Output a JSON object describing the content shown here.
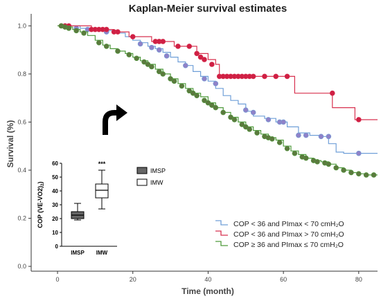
{
  "chart_data": [
    {
      "type": "line",
      "subtype": "step",
      "title": "Kaplan-Meier survival estimates",
      "xlabel": "Time (month)",
      "ylabel": "Survival (%)",
      "xlim": [
        -7,
        85
      ],
      "ylim": [
        -0.02,
        1.05
      ],
      "x_ticks": [
        0,
        20,
        40,
        60,
        80
      ],
      "y_ticks": [
        0.0,
        0.2,
        0.4,
        0.6,
        0.8,
        1.0
      ],
      "y_tick_labels": [
        "0.0",
        "0.2",
        "0.4",
        "0.6",
        "0.8",
        "1.0"
      ],
      "grid": false,
      "legend_position": "bottom-right",
      "series": [
        {
          "name": "COP < 36 and PImax < 70 cmH₂O",
          "color": "#6f9fd8",
          "marker_color": "#8f82c8",
          "points": [
            [
              0,
              1.0
            ],
            [
              3,
              1.0
            ],
            [
              6,
              0.99
            ],
            [
              9,
              0.985
            ],
            [
              12,
              0.98
            ],
            [
              15,
              0.97
            ],
            [
              18,
              0.955
            ],
            [
              20,
              0.94
            ],
            [
              22,
              0.93
            ],
            [
              24,
              0.915
            ],
            [
              26,
              0.905
            ],
            [
              28,
              0.89
            ],
            [
              30,
              0.87
            ],
            [
              32,
              0.85
            ],
            [
              34,
              0.835
            ],
            [
              36,
              0.81
            ],
            [
              38,
              0.79
            ],
            [
              40,
              0.77
            ],
            [
              42,
              0.74
            ],
            [
              44,
              0.71
            ],
            [
              46,
              0.69
            ],
            [
              48,
              0.675
            ],
            [
              50,
              0.645
            ],
            [
              52,
              0.625
            ],
            [
              55,
              0.615
            ],
            [
              58,
              0.6
            ],
            [
              61,
              0.58
            ],
            [
              64,
              0.555
            ],
            [
              67,
              0.545
            ],
            [
              70,
              0.54
            ],
            [
              72,
              0.51
            ],
            [
              74,
              0.475
            ],
            [
              76,
              0.47
            ],
            [
              80,
              0.47
            ],
            [
              85,
              0.47
            ]
          ],
          "markers": [
            [
              2,
              1.0
            ],
            [
              5,
              0.99
            ],
            [
              8,
              0.985
            ],
            [
              13,
              0.975
            ],
            [
              22,
              0.925
            ],
            [
              25,
              0.91
            ],
            [
              27,
              0.9
            ],
            [
              29,
              0.875
            ],
            [
              34,
              0.835
            ],
            [
              39,
              0.78
            ],
            [
              42,
              0.76
            ],
            [
              50,
              0.65
            ],
            [
              52,
              0.64
            ],
            [
              56,
              0.61
            ],
            [
              59,
              0.6
            ],
            [
              60,
              0.6
            ],
            [
              64,
              0.545
            ],
            [
              66,
              0.545
            ],
            [
              70,
              0.54
            ],
            [
              72,
              0.54
            ],
            [
              80,
              0.47
            ]
          ]
        },
        {
          "name": "COP < 36 and PImax > 70 cmH₂O",
          "color": "#d8314f",
          "marker_color": "#cf1f44",
          "points": [
            [
              0,
              1.0
            ],
            [
              8,
              1.0
            ],
            [
              9,
              0.985
            ],
            [
              14,
              0.985
            ],
            [
              15,
              0.975
            ],
            [
              18,
              0.975
            ],
            [
              19,
              0.955
            ],
            [
              24,
              0.955
            ],
            [
              25,
              0.935
            ],
            [
              30,
              0.935
            ],
            [
              31,
              0.915
            ],
            [
              36,
              0.915
            ],
            [
              37,
              0.885
            ],
            [
              40,
              0.86
            ],
            [
              42,
              0.84
            ],
            [
              43,
              0.79
            ],
            [
              62,
              0.79
            ],
            [
              63,
              0.72
            ],
            [
              72,
              0.72
            ],
            [
              73,
              0.66
            ],
            [
              78,
              0.66
            ],
            [
              79,
              0.61
            ],
            [
              85,
              0.61
            ]
          ],
          "markers": [
            [
              1,
              1.0
            ],
            [
              2,
              1.0
            ],
            [
              3,
              1.0
            ],
            [
              9,
              0.985
            ],
            [
              10,
              0.985
            ],
            [
              11,
              0.985
            ],
            [
              12,
              0.985
            ],
            [
              13,
              0.985
            ],
            [
              15,
              0.975
            ],
            [
              16,
              0.975
            ],
            [
              20,
              0.955
            ],
            [
              26,
              0.935
            ],
            [
              27,
              0.935
            ],
            [
              28,
              0.935
            ],
            [
              32,
              0.915
            ],
            [
              35,
              0.915
            ],
            [
              37,
              0.885
            ],
            [
              38,
              0.87
            ],
            [
              39,
              0.86
            ],
            [
              41,
              0.84
            ],
            [
              43,
              0.79
            ],
            [
              44,
              0.79
            ],
            [
              45,
              0.79
            ],
            [
              46,
              0.79
            ],
            [
              47,
              0.79
            ],
            [
              48,
              0.79
            ],
            [
              49,
              0.79
            ],
            [
              50,
              0.79
            ],
            [
              51,
              0.79
            ],
            [
              52,
              0.79
            ],
            [
              55,
              0.79
            ],
            [
              58,
              0.79
            ],
            [
              61,
              0.79
            ],
            [
              73,
              0.72
            ],
            [
              80,
              0.61
            ]
          ]
        },
        {
          "name": "COP ≥ 36 and PImax ≤ 70 cmH₂O",
          "color": "#4f9a3c",
          "marker_color": "#5b7a3e",
          "points": [
            [
              0,
              1.0
            ],
            [
              2,
              0.995
            ],
            [
              4,
              0.985
            ],
            [
              6,
              0.975
            ],
            [
              8,
              0.96
            ],
            [
              10,
              0.94
            ],
            [
              12,
              0.92
            ],
            [
              14,
              0.905
            ],
            [
              16,
              0.895
            ],
            [
              18,
              0.885
            ],
            [
              20,
              0.87
            ],
            [
              22,
              0.855
            ],
            [
              24,
              0.84
            ],
            [
              26,
              0.82
            ],
            [
              28,
              0.8
            ],
            [
              30,
              0.78
            ],
            [
              32,
              0.76
            ],
            [
              34,
              0.74
            ],
            [
              36,
              0.72
            ],
            [
              38,
              0.705
            ],
            [
              40,
              0.68
            ],
            [
              42,
              0.66
            ],
            [
              44,
              0.64
            ],
            [
              46,
              0.62
            ],
            [
              48,
              0.6
            ],
            [
              50,
              0.58
            ],
            [
              52,
              0.565
            ],
            [
              54,
              0.55
            ],
            [
              56,
              0.535
            ],
            [
              58,
              0.525
            ],
            [
              60,
              0.5
            ],
            [
              62,
              0.48
            ],
            [
              64,
              0.465
            ],
            [
              66,
              0.45
            ],
            [
              68,
              0.44
            ],
            [
              70,
              0.435
            ],
            [
              72,
              0.425
            ],
            [
              74,
              0.41
            ],
            [
              76,
              0.4
            ],
            [
              78,
              0.39
            ],
            [
              80,
              0.385
            ],
            [
              82,
              0.38
            ],
            [
              84,
              0.38
            ],
            [
              85,
              0.38
            ]
          ],
          "markers": [
            [
              1,
              1.0
            ],
            [
              2,
              0.995
            ],
            [
              3,
              0.99
            ],
            [
              5,
              0.98
            ],
            [
              7,
              0.97
            ],
            [
              11,
              0.93
            ],
            [
              13,
              0.915
            ],
            [
              16,
              0.895
            ],
            [
              19,
              0.88
            ],
            [
              21,
              0.865
            ],
            [
              23,
              0.85
            ],
            [
              24,
              0.84
            ],
            [
              25,
              0.83
            ],
            [
              27,
              0.81
            ],
            [
              28,
              0.8
            ],
            [
              30,
              0.78
            ],
            [
              31,
              0.77
            ],
            [
              33,
              0.75
            ],
            [
              35,
              0.73
            ],
            [
              36,
              0.72
            ],
            [
              37,
              0.71
            ],
            [
              39,
              0.69
            ],
            [
              40,
              0.68
            ],
            [
              41,
              0.67
            ],
            [
              42,
              0.66
            ],
            [
              44,
              0.64
            ],
            [
              46,
              0.62
            ],
            [
              47,
              0.61
            ],
            [
              49,
              0.59
            ],
            [
              50,
              0.58
            ],
            [
              51,
              0.57
            ],
            [
              53,
              0.555
            ],
            [
              55,
              0.54
            ],
            [
              56,
              0.535
            ],
            [
              57,
              0.53
            ],
            [
              59,
              0.515
            ],
            [
              61,
              0.49
            ],
            [
              63,
              0.47
            ],
            [
              65,
              0.455
            ],
            [
              66,
              0.45
            ],
            [
              68,
              0.44
            ],
            [
              69,
              0.435
            ],
            [
              71,
              0.43
            ],
            [
              72,
              0.425
            ],
            [
              74,
              0.41
            ],
            [
              76,
              0.4
            ],
            [
              78,
              0.39
            ],
            [
              80,
              0.385
            ],
            [
              82,
              0.38
            ],
            [
              84,
              0.38
            ]
          ]
        }
      ]
    },
    {
      "type": "box",
      "xlabel": "",
      "ylabel": "COP (VE-VO2)",
      "ylim": [
        0,
        60
      ],
      "y_ticks": [
        0,
        10,
        20,
        30,
        40,
        50,
        60
      ],
      "y_tick_labels": [
        "0",
        "10",
        "20",
        "30",
        "40",
        "50",
        "60"
      ],
      "categories": [
        "IMSP",
        "IMW"
      ],
      "boxes": [
        {
          "name": "IMSP",
          "min": 19,
          "q1": 20,
          "median": 22.5,
          "q3": 25,
          "max": 31,
          "fill": "#666666"
        },
        {
          "name": "IMW",
          "min": 27,
          "q1": 35,
          "median": 40.5,
          "q3": 45,
          "max": 55,
          "fill": "#ffffff"
        }
      ],
      "annotation": "***",
      "legend": [
        {
          "label": "IMSP",
          "fill": "#666666"
        },
        {
          "label": "IMW",
          "fill": "#ffffff"
        }
      ]
    }
  ]
}
